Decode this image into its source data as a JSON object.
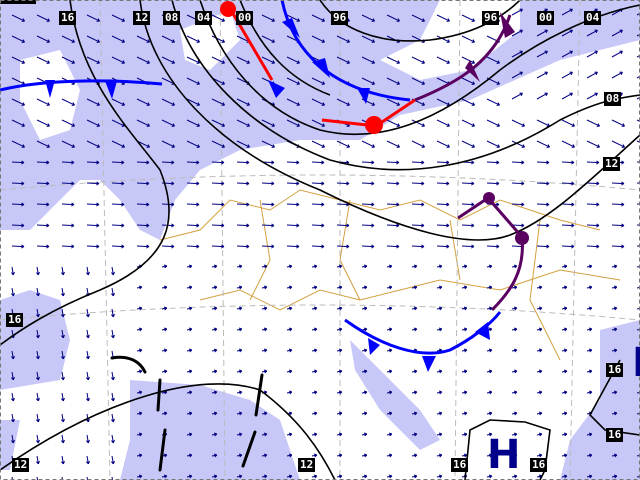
{
  "colors": {
    "sea": "#c8c8f8",
    "land": "#ffffff",
    "border": "#d4a040",
    "isobar": "#000000",
    "cold_front": "#0000ff",
    "warm_front": "#ff0000",
    "occluded_front": "#5a0060",
    "wind_arrow": "#000080",
    "pressure_system": "#00008b"
  },
  "isobar_labels": {
    "top": [
      "16",
      "12",
      "08",
      "04",
      "00",
      "96",
      "96",
      "00",
      "04"
    ],
    "right_08": "08",
    "right_12": "12",
    "left_16": "16",
    "bottom_left_12": "12",
    "bottom_mid_12": "12",
    "bottom_16a": "16",
    "bottom_16b": "16",
    "right_16a": "16",
    "right_16b": "16"
  },
  "pressure_systems": [
    {
      "type": "H"
    },
    {
      "type": "H"
    }
  ]
}
